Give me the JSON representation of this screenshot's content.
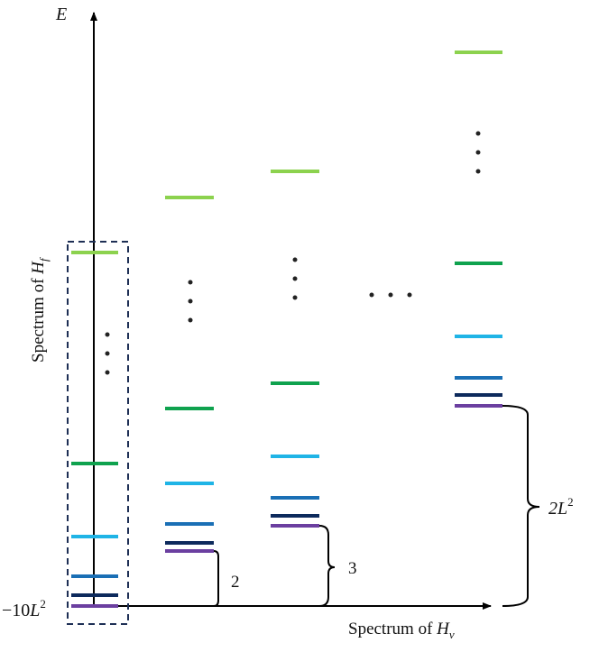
{
  "axes": {
    "energy_label": "E",
    "x_label_prefix": "Spectrum of ",
    "x_label_var": "H",
    "x_label_sub": "v",
    "y_label_prefix": "Spectrum of ",
    "y_label_var": "H",
    "y_label_sub": "f",
    "origin_prefix": "−10",
    "origin_var": "L",
    "origin_exp": "2"
  },
  "gaps": [
    {
      "value": "2"
    },
    {
      "value": "3"
    },
    {
      "var": "2L",
      "exp": "2"
    }
  ],
  "ellipsis": "…",
  "colors": {
    "level_1": "#6B3FA0",
    "level_2": "#0D2A5C",
    "level_3": "#1A6FB5",
    "level_4": "#1FB4E6",
    "level_5": "#0FA24E",
    "level_6": "#8CD24E",
    "axis": "#000000",
    "box": "#1E2F55"
  }
}
